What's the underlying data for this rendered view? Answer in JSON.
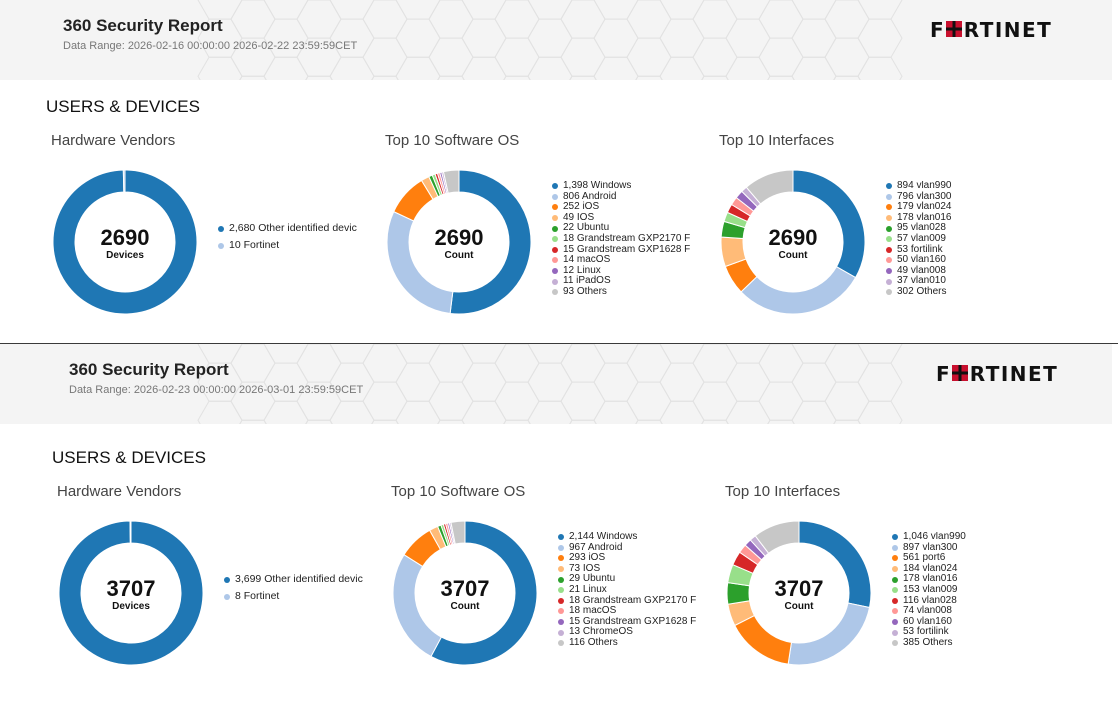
{
  "reports": [
    {
      "title": "360 Security Report",
      "date_range": "Data Range: 2026-02-16 00:00:00 2026-02-22 23:59:59CET",
      "brand": "FORTINET",
      "section": "USERS & DEVICES"
    },
    {
      "title": "360 Security Report",
      "date_range": "Data Range: 2026-02-23 00:00:00 2026-03-01 23:59:59CET",
      "brand": "FORTINET",
      "section": "USERS & DEVICES"
    }
  ],
  "colors": {
    "palette": [
      "#1f77b4",
      "#aec7e8",
      "#ff7f0e",
      "#ffbb78",
      "#2ca02c",
      "#98df8a",
      "#d62728",
      "#ff9896",
      "#9467bd",
      "#c5b0d5",
      "#c7c7c7"
    ],
    "header_bg": "#f4f4f4",
    "brand_red": "#c8102e"
  },
  "chart_data": [
    {
      "type": "pie",
      "title": "Hardware Vendors",
      "center_value": "2690",
      "center_label": "Devices",
      "series": [
        {
          "labels": [
            "2,680 Other identified devic",
            "10 Fortinet"
          ],
          "values": [
            2680,
            10
          ]
        }
      ]
    },
    {
      "type": "pie",
      "title": "Top 10 Software OS",
      "center_value": "2690",
      "center_label": "Count",
      "series": [
        {
          "labels": [
            "1,398 Windows",
            "806 Android",
            "252 iOS",
            "49 IOS",
            "22 Ubuntu",
            "18 Grandstream GXP2170 F",
            "15 Grandstream GXP1628 F",
            "14 macOS",
            "12 Linux",
            "11 iPadOS",
            "93 Others"
          ],
          "values": [
            1398,
            806,
            252,
            49,
            22,
            18,
            15,
            14,
            12,
            11,
            93
          ]
        }
      ]
    },
    {
      "type": "pie",
      "title": "Top 10 Interfaces",
      "center_value": "2690",
      "center_label": "Count",
      "series": [
        {
          "labels": [
            "894 vlan990",
            "796 vlan300",
            "179 vlan024",
            "178 vlan016",
            "95 vlan028",
            "57 vlan009",
            "53 fortilink",
            "50 vlan160",
            "49 vlan008",
            "37 vlan010",
            "302 Others"
          ],
          "values": [
            894,
            796,
            179,
            178,
            95,
            57,
            53,
            50,
            49,
            37,
            302
          ]
        }
      ]
    },
    {
      "type": "pie",
      "title": "Hardware Vendors",
      "center_value": "3707",
      "center_label": "Devices",
      "series": [
        {
          "labels": [
            "3,699 Other identified devic",
            "8 Fortinet"
          ],
          "values": [
            3699,
            8
          ]
        }
      ]
    },
    {
      "type": "pie",
      "title": "Top 10 Software OS",
      "center_value": "3707",
      "center_label": "Count",
      "series": [
        {
          "labels": [
            "2,144 Windows",
            "967 Android",
            "293 iOS",
            "73 IOS",
            "29 Ubuntu",
            "21 Linux",
            "18 Grandstream GXP2170 F",
            "18 macOS",
            "15 Grandstream GXP1628 F",
            "13 ChromeOS",
            "116 Others"
          ],
          "values": [
            2144,
            967,
            293,
            73,
            29,
            21,
            18,
            18,
            15,
            13,
            116
          ]
        }
      ]
    },
    {
      "type": "pie",
      "title": "Top 10 Interfaces",
      "center_value": "3707",
      "center_label": "Count",
      "series": [
        {
          "labels": [
            "1,046 vlan990",
            "897 vlan300",
            "561 port6",
            "184 vlan024",
            "178 vlan016",
            "153 vlan009",
            "116 vlan028",
            "74 vlan008",
            "60 vlan160",
            "53 fortilink",
            "385 Others"
          ],
          "values": [
            1046,
            897,
            561,
            184,
            178,
            153,
            116,
            74,
            60,
            53,
            385
          ]
        }
      ]
    }
  ]
}
